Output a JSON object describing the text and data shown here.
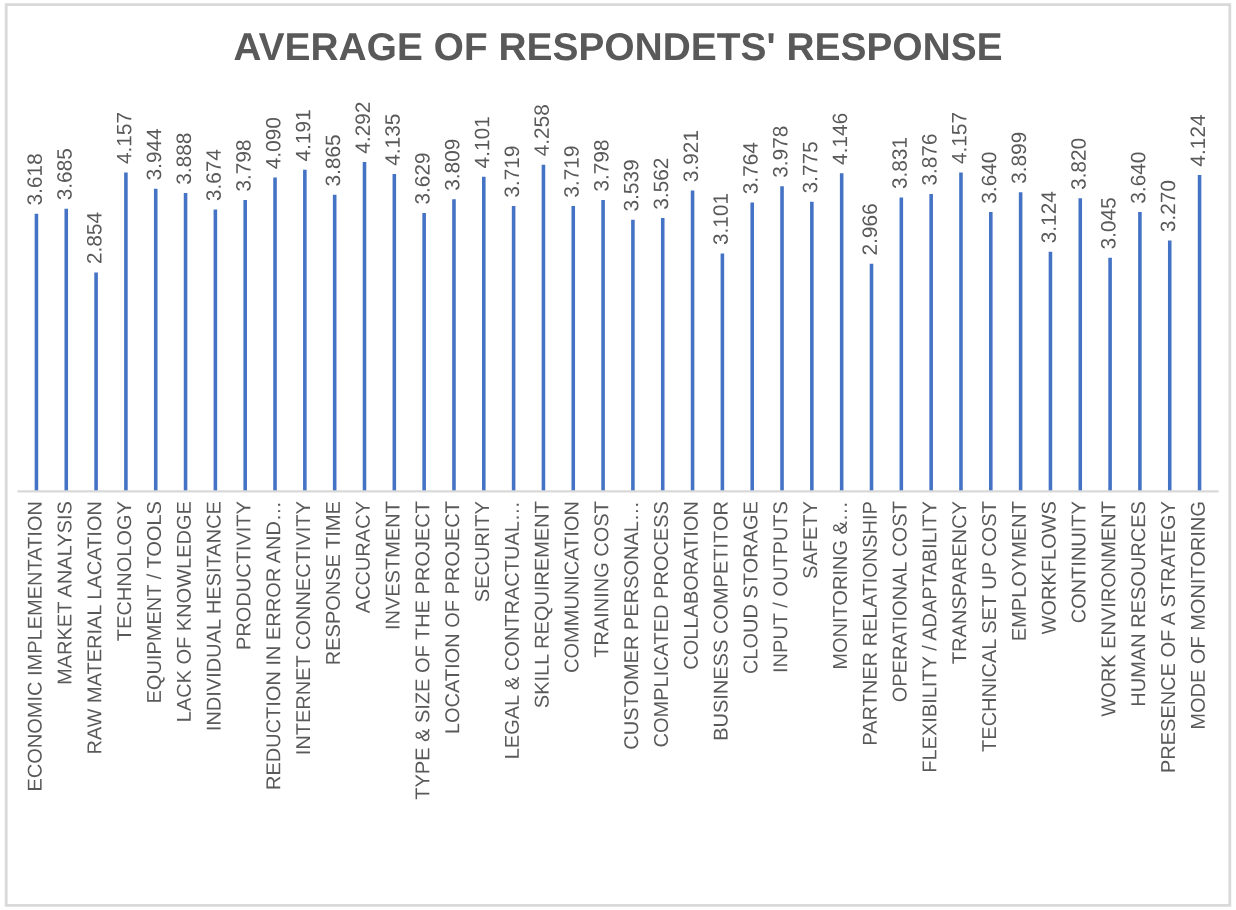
{
  "chart_data": {
    "type": "bar",
    "title": "AVERAGE OF RESPONDETS' RESPONSE",
    "categories": [
      "ECONOMIC IMPLEMENTATION",
      "MARKET ANALYSIS",
      "RAW MATERIAL LACATION",
      "TECHNOLOGY",
      "EQUIPMENT / TOOLS",
      "LACK OF KNOWLEDGE",
      "INDIVIDUAL HESITANCE",
      "PRODUCTIVITY",
      "REDUCTION IN ERROR AND…",
      "INTERNET CONNECTIVITY",
      "RESPONSE TIME",
      "ACCURACY",
      "INVESTMENT",
      "TYPE & SIZE OF THE PROJECT",
      "LOCATION OF PROJECT",
      "SECURITY",
      "LEGAL & CONTRACTUAL…",
      "SKILL REQUIREMENT",
      "COMMUNICATION",
      "TRAINING COST",
      "CUSTOMER PERSONAL…",
      "COMPLICATED PROCESS",
      "COLLABORATION",
      "BUSINESS COMPETITOR",
      "CLOUD STORAGE",
      "INPUT / OUTPUTS",
      "SAFETY",
      "MONITORING &…",
      "PARTNER RELATIONSHIP",
      "OPERATIONAL COST",
      "FLEXIBILITY / ADAPTABILITY",
      "TRANSPARENCY",
      "TECHNICAL SET UP COST",
      "EMPLOYMENT",
      "WORKFLOWS",
      "CONTINUITY",
      "WORK ENVIRONMENT",
      "HUMAN RESOURCES",
      "PRESENCE OF A STRATEGY",
      "MODE OF MONITORING"
    ],
    "values": [
      3.618,
      3.685,
      2.854,
      4.157,
      3.944,
      3.888,
      3.674,
      3.798,
      4.09,
      4.191,
      3.865,
      4.292,
      4.135,
      3.629,
      3.809,
      4.101,
      3.719,
      4.258,
      3.719,
      3.798,
      3.539,
      3.562,
      3.921,
      3.101,
      3.764,
      3.978,
      3.775,
      4.146,
      2.966,
      3.831,
      3.876,
      4.157,
      3.64,
      3.899,
      3.124,
      3.82,
      3.045,
      3.64,
      3.27,
      4.124
    ],
    "value_labels": [
      "3.618",
      "3.685",
      "2.854",
      "4.157",
      "3.944",
      "3.888",
      "3.674",
      "3.798",
      "4.090",
      "4.191",
      "3.865",
      "4.292",
      "4.135",
      "3.629",
      "3.809",
      "4.101",
      "3.719",
      "4.258",
      "3.719",
      "3.798",
      "3.539",
      "3.562",
      "3.921",
      "3.101",
      "3.764",
      "3.978",
      "3.775",
      "4.146",
      "2.966",
      "3.831",
      "3.876",
      "4.157",
      "3.640",
      "3.899",
      "3.124",
      "3.820",
      "3.045",
      "3.640",
      "3.270",
      "4.124"
    ],
    "color": "#4472c4",
    "grid": false,
    "legend": false
  }
}
